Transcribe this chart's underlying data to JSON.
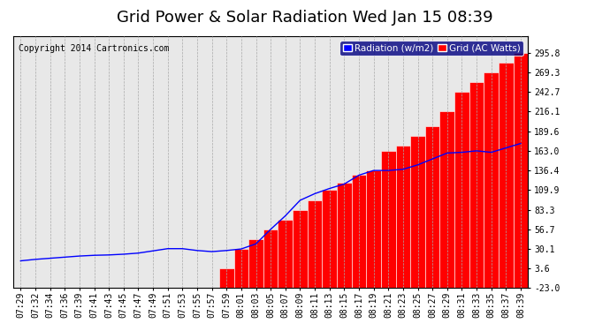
{
  "title": "Grid Power & Solar Radiation Wed Jan 15 08:39",
  "copyright": "Copyright 2014 Cartronics.com",
  "legend_labels": [
    "Radiation (w/m2)",
    "Grid (AC Watts)"
  ],
  "legend_colors": [
    "blue",
    "red"
  ],
  "background_color": "#ffffff",
  "plot_bg_color": "#e8e8e8",
  "ylim": [
    -23.0,
    318.0
  ],
  "yticks": [
    -23.0,
    3.6,
    30.1,
    56.7,
    83.3,
    109.9,
    136.4,
    163.0,
    189.6,
    216.1,
    242.7,
    269.3,
    295.8
  ],
  "x_labels": [
    "07:29",
    "07:32",
    "07:34",
    "07:36",
    "07:39",
    "07:41",
    "07:43",
    "07:45",
    "07:47",
    "07:49",
    "07:51",
    "07:53",
    "07:55",
    "07:57",
    "07:59",
    "08:01",
    "08:03",
    "08:05",
    "08:07",
    "08:09",
    "08:11",
    "08:13",
    "08:15",
    "08:17",
    "08:19",
    "08:21",
    "08:23",
    "08:25",
    "08:27",
    "08:29",
    "08:31",
    "08:33",
    "08:35",
    "08:37",
    "08:39"
  ],
  "grid_values": [
    -23.0,
    -23.0,
    -23.0,
    -23.0,
    -23.0,
    -23.0,
    -23.0,
    -23.0,
    -23.0,
    -23.0,
    -23.0,
    -23.0,
    -23.0,
    -23.0,
    3.6,
    30.1,
    43.0,
    56.7,
    70.0,
    83.3,
    96.0,
    109.9,
    120.0,
    130.0,
    136.4,
    163.0,
    170.0,
    183.0,
    196.0,
    216.1,
    242.7,
    256.0,
    269.3,
    282.0,
    295.8
  ],
  "radiation_values": [
    14.0,
    16.0,
    17.5,
    19.0,
    20.5,
    21.5,
    22.0,
    23.0,
    24.5,
    27.5,
    30.5,
    30.5,
    28.0,
    26.5,
    28.0,
    30.1,
    37.0,
    56.7,
    75.0,
    96.0,
    105.0,
    112.0,
    118.0,
    130.0,
    136.4,
    136.4,
    138.0,
    144.0,
    152.0,
    160.0,
    161.0,
    163.0,
    161.0,
    167.0,
    173.0
  ],
  "title_fontsize": 13,
  "copyright_fontsize": 7,
  "tick_fontsize": 7,
  "legend_fontsize": 7.5
}
